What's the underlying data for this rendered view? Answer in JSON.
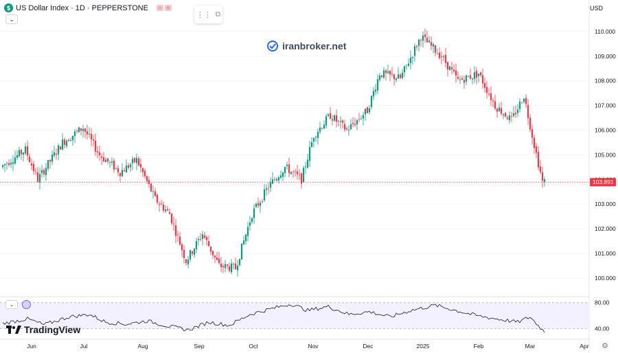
{
  "header": {
    "symbol_badge": "$",
    "title": "US Dollar Index · 1D · PEPPERSTONE",
    "currency": "USD",
    "watermark": "iranbroker.net",
    "logo": "TradingView"
  },
  "colors": {
    "up": "#089981",
    "down": "#f23645",
    "grid": "#f0f3fa",
    "osc_band": "#f3f0ff",
    "price_line": "#f23645"
  },
  "chart_data": {
    "type": "candlestick",
    "title": "US Dollar Index",
    "interval": "1D",
    "source": "PEPPERSTONE",
    "y_ticks": [
      100.0,
      101.0,
      102.0,
      103.0,
      104.0,
      105.0,
      106.0,
      107.0,
      108.0,
      109.0,
      110.0
    ],
    "y_tick_labels": [
      "100.000",
      "101.000",
      "102.000",
      "103.000",
      "104.000",
      "105.000",
      "106.000",
      "107.000",
      "108.000",
      "109.000",
      "110.000"
    ],
    "ylim": [
      99.3,
      111.0
    ],
    "current_price": 103.891,
    "current_price_label": "103.891",
    "x_labels": [
      "Jun",
      "Jul",
      "Aug",
      "Sep",
      "Oct",
      "Nov",
      "Dec",
      "2025",
      "Feb",
      "Mar",
      "Apr"
    ],
    "anchors": [
      [
        0,
        104.5
      ],
      [
        12,
        105.2
      ],
      [
        18,
        104.0
      ],
      [
        30,
        105.5
      ],
      [
        40,
        106.1
      ],
      [
        48,
        105.0
      ],
      [
        58,
        104.3
      ],
      [
        66,
        104.8
      ],
      [
        75,
        103.2
      ],
      [
        82,
        102.6
      ],
      [
        90,
        100.7
      ],
      [
        98,
        101.8
      ],
      [
        106,
        100.5
      ],
      [
        114,
        100.4
      ],
      [
        122,
        102.6
      ],
      [
        130,
        103.7
      ],
      [
        138,
        104.5
      ],
      [
        146,
        104.0
      ],
      [
        152,
        105.8
      ],
      [
        160,
        106.6
      ],
      [
        168,
        106.0
      ],
      [
        178,
        106.8
      ],
      [
        184,
        108.3
      ],
      [
        194,
        108.1
      ],
      [
        204,
        109.8
      ],
      [
        214,
        109.0
      ],
      [
        222,
        108.0
      ],
      [
        232,
        108.3
      ],
      [
        240,
        107.0
      ],
      [
        248,
        106.4
      ],
      [
        254,
        107.4
      ],
      [
        258,
        105.8
      ],
      [
        263,
        103.9
      ]
    ],
    "oscillator": {
      "levels": [
        80.0,
        40.0
      ],
      "level_labels": [
        "80.00",
        "40.00"
      ],
      "ylim": [
        30,
        85
      ],
      "anchors": [
        [
          0,
          48
        ],
        [
          12,
          55
        ],
        [
          20,
          46
        ],
        [
          32,
          58
        ],
        [
          42,
          62
        ],
        [
          50,
          50
        ],
        [
          60,
          47
        ],
        [
          70,
          52
        ],
        [
          80,
          44
        ],
        [
          90,
          38
        ],
        [
          100,
          50
        ],
        [
          110,
          45
        ],
        [
          120,
          62
        ],
        [
          132,
          72
        ],
        [
          140,
          78
        ],
        [
          148,
          68
        ],
        [
          158,
          74
        ],
        [
          168,
          62
        ],
        [
          178,
          66
        ],
        [
          188,
          58
        ],
        [
          198,
          68
        ],
        [
          210,
          76
        ],
        [
          220,
          68
        ],
        [
          230,
          60
        ],
        [
          240,
          55
        ],
        [
          250,
          50
        ],
        [
          256,
          58
        ],
        [
          263,
          35
        ]
      ]
    }
  }
}
